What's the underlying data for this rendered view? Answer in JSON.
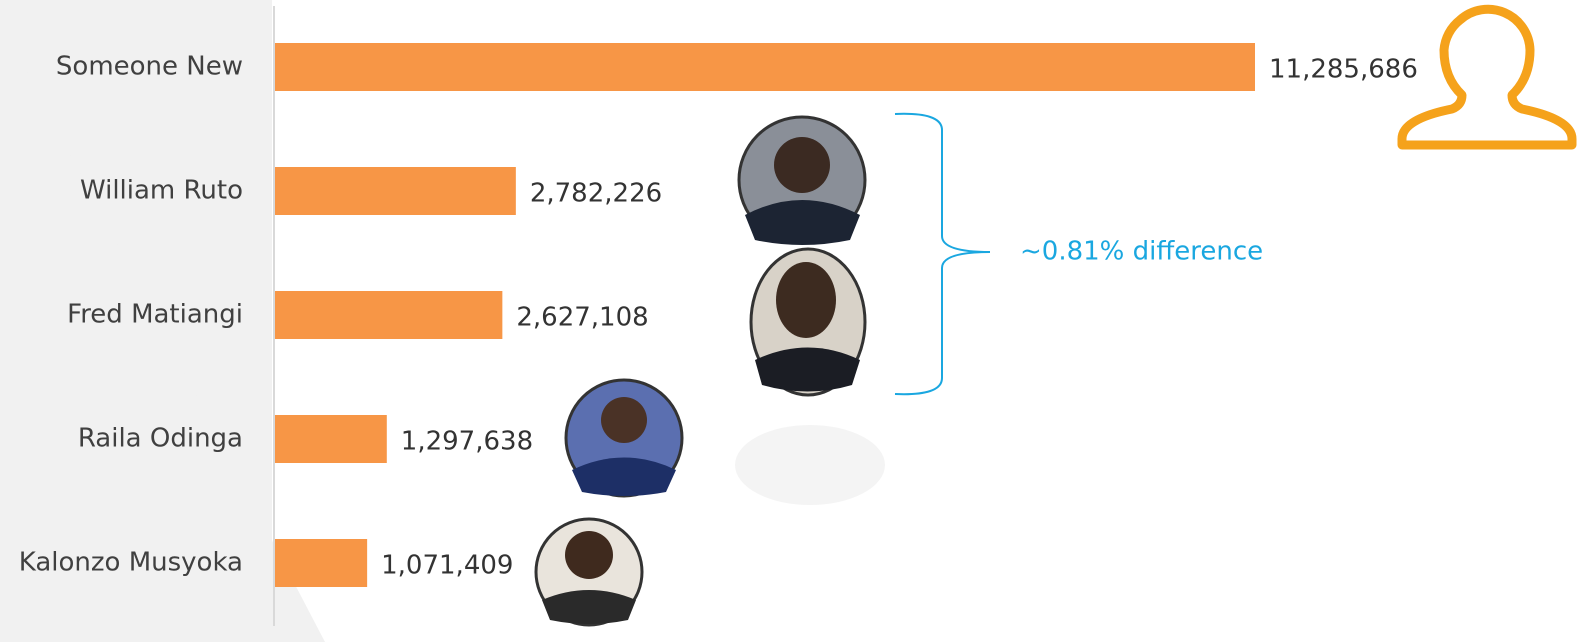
{
  "chart_data": {
    "type": "bar",
    "orientation": "horizontal",
    "categories": [
      "Someone New",
      "William Ruto",
      "Fred Matiangi",
      "Raila Odinga",
      "Kalonzo Musyoka"
    ],
    "values": [
      11285686,
      2782226,
      2627108,
      1297638,
      1071409
    ],
    "value_labels": [
      "11,285,686",
      "2,782,226",
      "2,627,108",
      "1,297,638",
      "1,071,409"
    ],
    "color": "#f79646",
    "annotation": "~0.81% difference"
  }
}
